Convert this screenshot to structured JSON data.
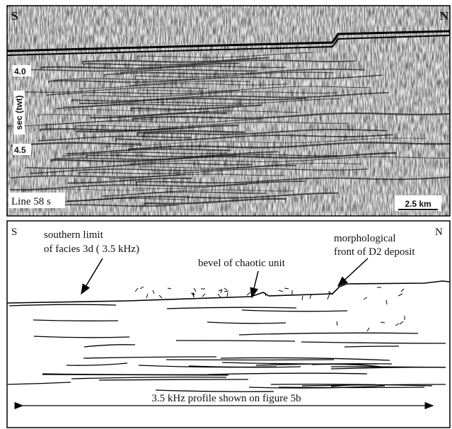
{
  "seismic_panel": {
    "left_label": "S",
    "right_label": "N",
    "depth_ticks": [
      "4.0",
      "4.5"
    ],
    "axis_label": "sec (twt)",
    "line_label": "Line 58 s",
    "scale_label": "2.5 km"
  },
  "interpretation_panel": {
    "left_label": "S",
    "right_label": "N",
    "annotations": [
      "southern limit",
      "of facies 3d ( 3.5 kHz)",
      "bevel of chaotic unit",
      "morphological",
      "front of D2 deposit"
    ],
    "profile_label": "3.5 kHz profile shown on figure 5b"
  }
}
